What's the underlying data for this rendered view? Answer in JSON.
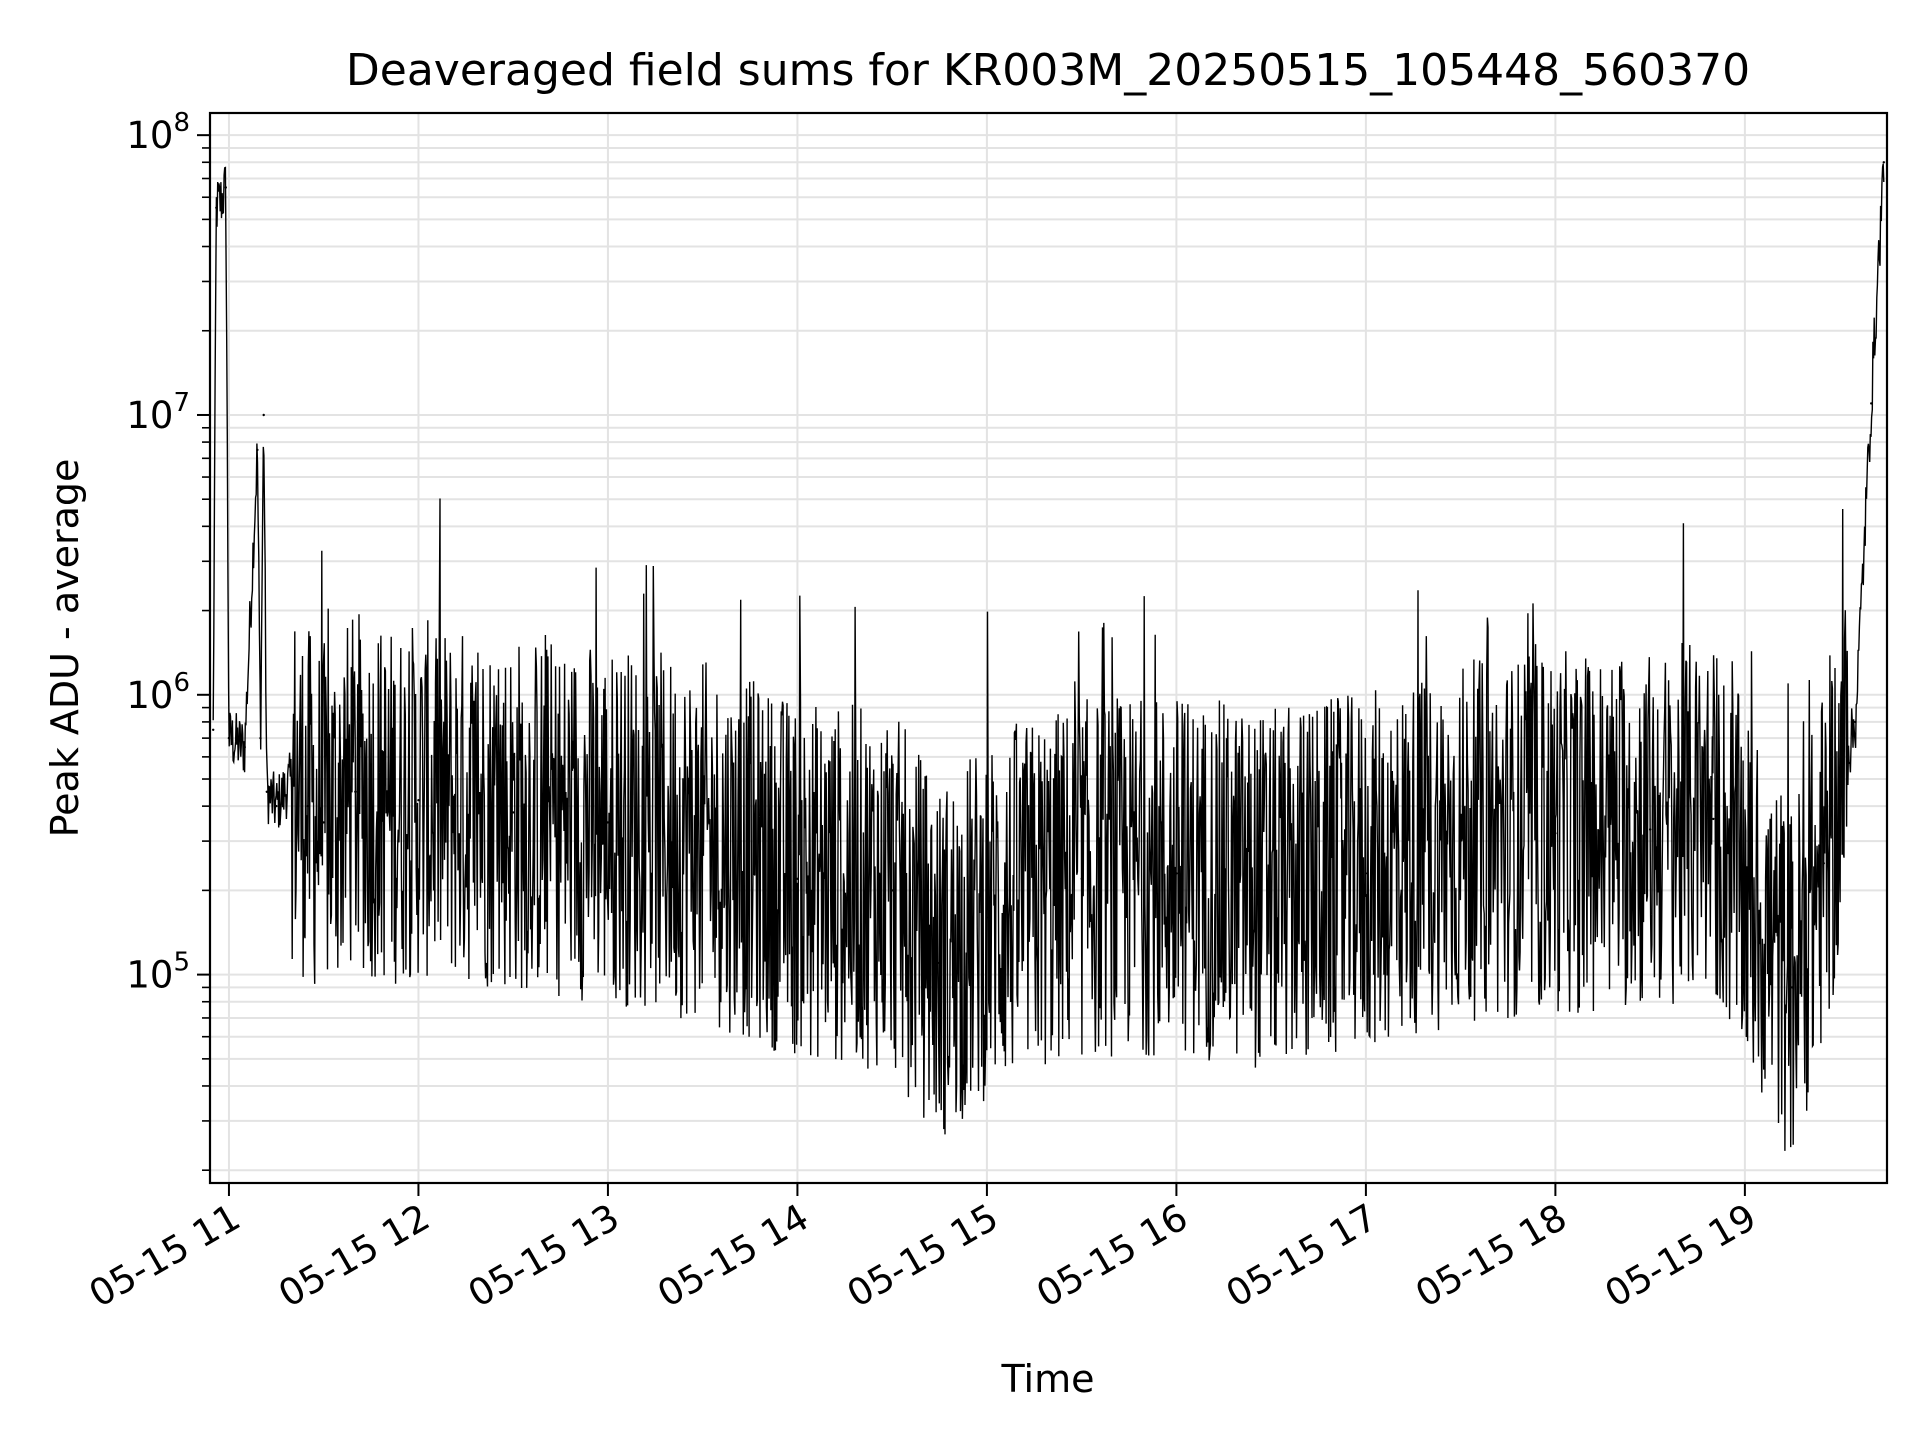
{
  "chart_data": {
    "type": "line",
    "title": "Deaveraged field sums for KR003M_20250515_105448_560370",
    "xlabel": "Time",
    "ylabel": "Peak ADU - average",
    "yscale": "log",
    "ylim": [
      18000,
      120000000
    ],
    "xlim": [
      "2025-05-15 10:54",
      "2025-05-15 19:45"
    ],
    "x_ticks": [
      {
        "value": "2025-05-15 11:00",
        "label": "05-15 11"
      },
      {
        "value": "2025-05-15 12:00",
        "label": "05-15 12"
      },
      {
        "value": "2025-05-15 13:00",
        "label": "05-15 13"
      },
      {
        "value": "2025-05-15 14:00",
        "label": "05-15 14"
      },
      {
        "value": "2025-05-15 15:00",
        "label": "05-15 15"
      },
      {
        "value": "2025-05-15 16:00",
        "label": "05-15 16"
      },
      {
        "value": "2025-05-15 17:00",
        "label": "05-15 17"
      },
      {
        "value": "2025-05-15 18:00",
        "label": "05-15 18"
      },
      {
        "value": "2025-05-15 19:00",
        "label": "05-15 19"
      }
    ],
    "y_ticks": [
      {
        "value": 100000,
        "base": "10",
        "exp": "5"
      },
      {
        "value": 1000000,
        "base": "10",
        "exp": "6"
      },
      {
        "value": 10000000,
        "base": "10",
        "exp": "7"
      },
      {
        "value": 100000000,
        "base": "10",
        "exp": "8"
      }
    ],
    "grid": true,
    "line_color": "#000000",
    "series": [
      {
        "x": [
          "2025-05-15 10:55",
          "2025-05-15 10:56",
          "2025-05-15 10:58",
          "2025-05-15 10:59",
          "2025-05-15 11:00",
          "2025-05-15 11:05",
          "2025-05-15 11:09",
          "2025-05-15 11:10",
          "2025-05-15 11:11",
          "2025-05-15 11:12",
          "2025-05-15 11:15",
          "2025-05-15 11:20",
          "2025-05-15 11:25",
          "2025-05-15 11:30",
          "2025-05-15 11:40",
          "2025-05-15 11:50",
          "2025-05-15 12:00",
          "2025-05-15 12:30",
          "2025-05-15 13:00",
          "2025-05-15 13:30",
          "2025-05-15 14:00",
          "2025-05-15 14:30",
          "2025-05-15 14:45",
          "2025-05-15 15:00",
          "2025-05-15 15:30",
          "2025-05-15 16:00",
          "2025-05-15 16:30",
          "2025-05-15 17:00",
          "2025-05-15 17:30",
          "2025-05-15 18:00",
          "2025-05-15 18:30",
          "2025-05-15 18:50",
          "2025-05-15 19:00",
          "2025-05-15 19:15",
          "2025-05-15 19:25",
          "2025-05-15 19:35",
          "2025-05-15 19:40",
          "2025-05-15 19:44"
        ],
        "y": [
          750000,
          55000000,
          60000000,
          65000000,
          700000,
          650000,
          7500000,
          700000,
          10000000,
          450000,
          400000,
          500000,
          400000,
          350000,
          450000,
          400000,
          420000,
          380000,
          350000,
          300000,
          220000,
          200000,
          110000,
          160000,
          220000,
          230000,
          200000,
          230000,
          300000,
          320000,
          330000,
          360000,
          200000,
          90000,
          250000,
          800000,
          11000000,
          80000000
        ]
      }
    ]
  }
}
